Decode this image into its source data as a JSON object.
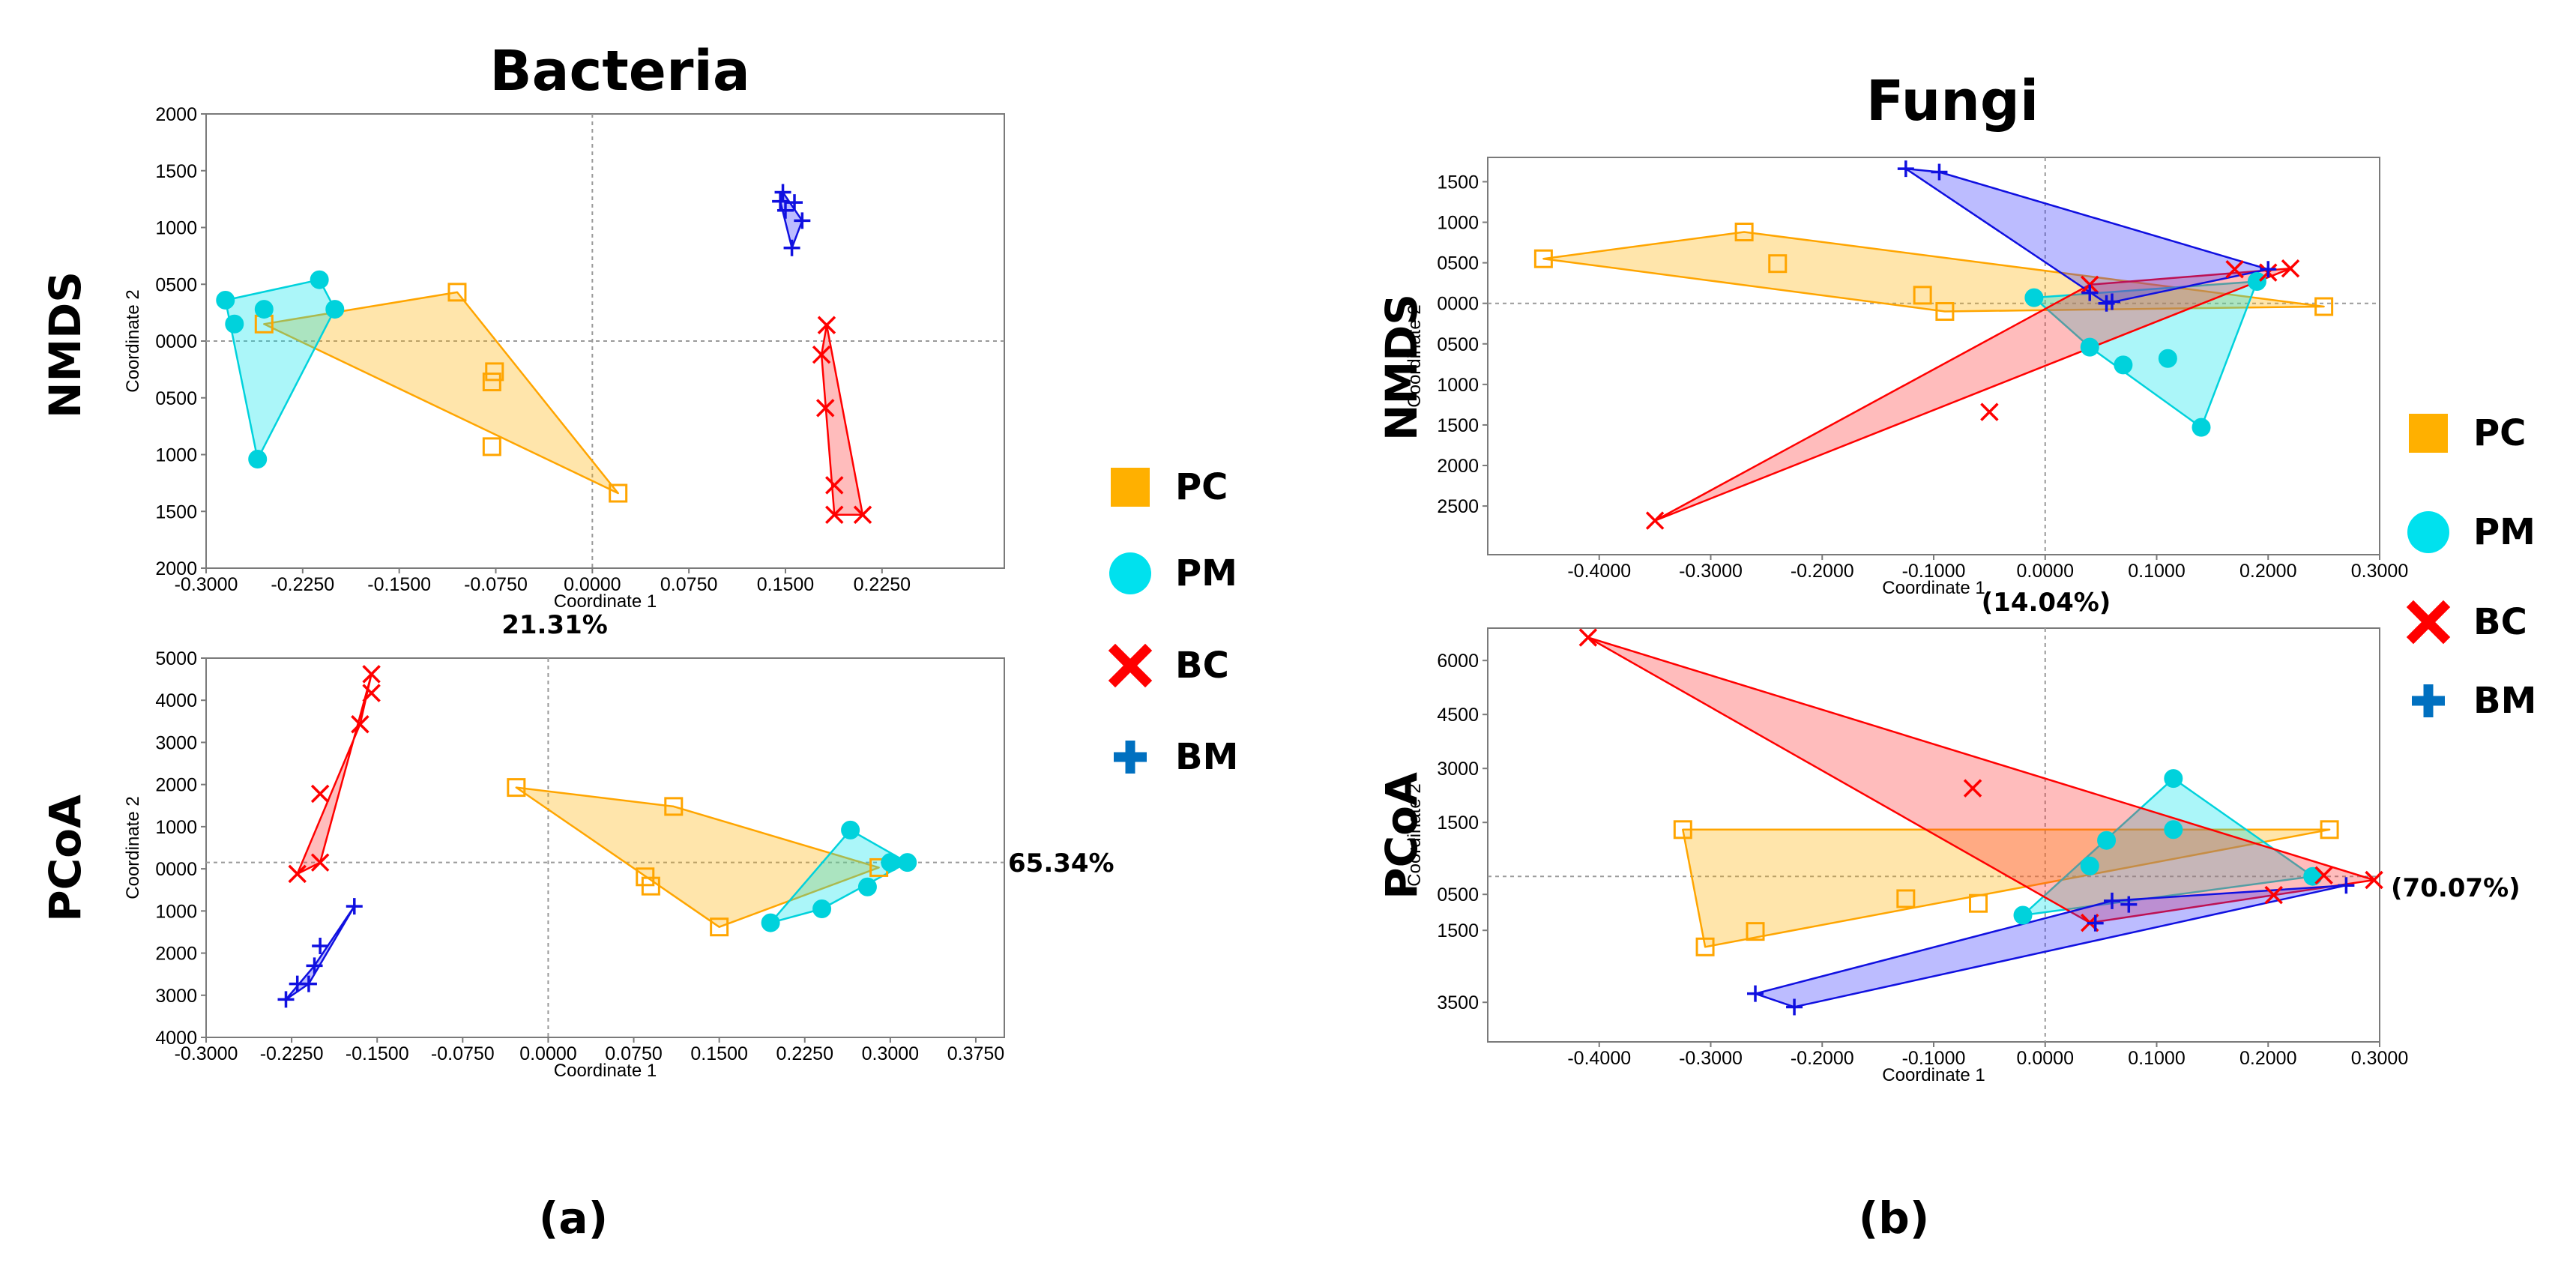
{
  "chart_data": [
    {
      "id": "bact_nmds",
      "type": "scatter",
      "section": "Bacteria",
      "method": "NMDS",
      "xlabel": "Coordinate 1",
      "ylabel": "Coordinate 2",
      "xlim": [
        -0.3,
        0.32
      ],
      "ylim": [
        -2000,
        2000
      ],
      "xticks": [
        -0.3,
        -0.225,
        -0.15,
        -0.075,
        0.0,
        0.075,
        0.15,
        0.225
      ],
      "xticklabels": [
        "-0.3000",
        "-0.2250",
        "-0.1500",
        "-0.0750",
        "0.0000",
        "0.0750",
        "0.1500",
        "0.2250"
      ],
      "yticks": [
        2000,
        1500,
        1000,
        500,
        0,
        -500,
        -1000,
        -1500,
        -2000
      ],
      "yticklabels": [
        "2000",
        "1500",
        "1000",
        "0500",
        "0000",
        "0500",
        "1000",
        "1500",
        "2000"
      ],
      "ref_x": 0.0,
      "ref_y": 0,
      "series": [
        {
          "name": "PC",
          "points": [
            [
              -0.105,
              430
            ],
            [
              -0.076,
              -270
            ],
            [
              -0.078,
              -360
            ],
            [
              -0.078,
              -930
            ],
            [
              -0.255,
              150
            ],
            [
              0.02,
              -1340
            ]
          ],
          "hull": [
            [
              -0.105,
              430
            ],
            [
              0.02,
              -1340
            ],
            [
              -0.255,
              150
            ]
          ]
        },
        {
          "name": "PM",
          "points": [
            [
              -0.285,
              360
            ],
            [
              -0.255,
              280
            ],
            [
              -0.278,
              150
            ],
            [
              -0.212,
              540
            ],
            [
              -0.2,
              280
            ],
            [
              -0.26,
              -1040
            ]
          ],
          "hull": [
            [
              -0.285,
              360
            ],
            [
              -0.212,
              540
            ],
            [
              -0.2,
              280
            ],
            [
              -0.26,
              -1040
            ]
          ]
        },
        {
          "name": "BC",
          "points": [
            [
              0.182,
              140
            ],
            [
              0.178,
              -120
            ],
            [
              0.181,
              -590
            ],
            [
              0.188,
              -1270
            ],
            [
              0.188,
              -1530
            ],
            [
              0.21,
              -1530
            ]
          ],
          "hull": [
            [
              0.182,
              140
            ],
            [
              0.21,
              -1530
            ],
            [
              0.188,
              -1530
            ],
            [
              0.178,
              -120
            ]
          ]
        },
        {
          "name": "BM",
          "points": [
            [
              0.148,
              1310
            ],
            [
              0.146,
              1230
            ],
            [
              0.157,
              1220
            ],
            [
              0.15,
              1150
            ],
            [
              0.163,
              1060
            ],
            [
              0.155,
              820
            ]
          ],
          "hull": [
            [
              0.148,
              1310
            ],
            [
              0.163,
              1060
            ],
            [
              0.155,
              820
            ],
            [
              0.146,
              1230
            ]
          ]
        }
      ]
    },
    {
      "id": "bact_pcoa",
      "type": "scatter",
      "section": "Bacteria",
      "method": "PCoA",
      "xlabel": "Coordinate 1",
      "ylabel": "Coordinate 2",
      "xlim": [
        -0.3,
        0.4
      ],
      "ylim": [
        -4000,
        5000
      ],
      "xticks": [
        -0.3,
        -0.225,
        -0.15,
        -0.075,
        0.0,
        0.075,
        0.15,
        0.225,
        0.3,
        0.375
      ],
      "xticklabels": [
        "-0.3000",
        "-0.2250",
        "-0.1500",
        "-0.0750",
        "0.0000",
        "0.0750",
        "0.1500",
        "0.2250",
        "0.3000",
        "0.3750"
      ],
      "yticks": [
        5000,
        4000,
        3000,
        2000,
        1000,
        0,
        -1000,
        -2000,
        -3000,
        -4000
      ],
      "yticklabels": [
        "5000",
        "4000",
        "3000",
        "2000",
        "1000",
        "0000",
        "1000",
        "2000",
        "3000",
        "4000"
      ],
      "ref_x": 0.0,
      "ref_y": 150,
      "series": [
        {
          "name": "PC",
          "points": [
            [
              -0.028,
              1930
            ],
            [
              0.11,
              1480
            ],
            [
              0.085,
              -190
            ],
            [
              0.09,
              -410
            ],
            [
              0.15,
              -1380
            ],
            [
              0.29,
              30
            ]
          ],
          "hull": [
            [
              -0.028,
              1930
            ],
            [
              0.11,
              1480
            ],
            [
              0.29,
              30
            ],
            [
              0.15,
              -1380
            ]
          ]
        },
        {
          "name": "PM",
          "points": [
            [
              0.265,
              920
            ],
            [
              0.3,
              150
            ],
            [
              0.315,
              150
            ],
            [
              0.28,
              -430
            ],
            [
              0.24,
              -950
            ],
            [
              0.195,
              -1280
            ]
          ],
          "hull": [
            [
              0.265,
              920
            ],
            [
              0.315,
              150
            ],
            [
              0.24,
              -950
            ],
            [
              0.195,
              -1280
            ]
          ]
        },
        {
          "name": "BC",
          "points": [
            [
              -0.155,
              4620
            ],
            [
              -0.155,
              4170
            ],
            [
              -0.165,
              3430
            ],
            [
              -0.2,
              1780
            ],
            [
              -0.2,
              150
            ],
            [
              -0.22,
              -120
            ]
          ],
          "hull": [
            [
              -0.155,
              4620
            ],
            [
              -0.2,
              150
            ],
            [
              -0.22,
              -120
            ],
            [
              -0.165,
              3430
            ]
          ]
        },
        {
          "name": "BM",
          "points": [
            [
              -0.17,
              -890
            ],
            [
              -0.2,
              -1830
            ],
            [
              -0.205,
              -2300
            ],
            [
              -0.21,
              -2730
            ],
            [
              -0.22,
              -2730
            ],
            [
              -0.23,
              -3100
            ]
          ],
          "hull": [
            [
              -0.17,
              -890
            ],
            [
              -0.205,
              -2300
            ],
            [
              -0.23,
              -3100
            ],
            [
              -0.21,
              -2730
            ]
          ]
        }
      ]
    },
    {
      "id": "fungi_nmds",
      "type": "scatter",
      "section": "Fungi",
      "method": "NMDS",
      "xlabel": "Coordinate 1",
      "ylabel": "Coordinate 2",
      "xlim": [
        -0.5,
        0.3
      ],
      "ylim": [
        -3100,
        1800
      ],
      "xticks": [
        -0.4,
        -0.3,
        -0.2,
        -0.1,
        0.0,
        0.1,
        0.2,
        0.3
      ],
      "xticklabels": [
        "-0.4000",
        "-0.3000",
        "-0.2000",
        "-0.1000",
        "0.0000",
        "0.1000",
        "0.2000",
        "0.3000"
      ],
      "yticks": [
        1500,
        1000,
        500,
        0,
        -500,
        -1000,
        -1500,
        -2000,
        -2500
      ],
      "yticklabels": [
        "1500",
        "1000",
        "0500",
        "0000",
        "0500",
        "1000",
        "1500",
        "2000",
        "2500"
      ],
      "ref_x": 0.0,
      "ref_y": 0,
      "series": [
        {
          "name": "PC",
          "points": [
            [
              -0.45,
              550
            ],
            [
              -0.27,
              880
            ],
            [
              -0.24,
              490
            ],
            [
              -0.11,
              100
            ],
            [
              -0.09,
              -100
            ],
            [
              0.25,
              -40
            ]
          ],
          "hull": [
            [
              -0.45,
              550
            ],
            [
              -0.27,
              880
            ],
            [
              0.25,
              -40
            ],
            [
              -0.09,
              -100
            ]
          ]
        },
        {
          "name": "PM",
          "points": [
            [
              -0.01,
              70
            ],
            [
              0.04,
              -540
            ],
            [
              0.07,
              -760
            ],
            [
              0.11,
              -680
            ],
            [
              0.14,
              -1530
            ],
            [
              0.19,
              270
            ]
          ],
          "hull": [
            [
              -0.01,
              70
            ],
            [
              0.19,
              270
            ],
            [
              0.14,
              -1530
            ],
            [
              0.04,
              -540
            ]
          ]
        },
        {
          "name": "BC",
          "points": [
            [
              -0.35,
              -2680
            ],
            [
              -0.05,
              -1340
            ],
            [
              0.04,
              230
            ],
            [
              0.17,
              420
            ],
            [
              0.22,
              430
            ],
            [
              0.2,
              380
            ]
          ],
          "hull": [
            [
              -0.35,
              -2680
            ],
            [
              0.04,
              230
            ],
            [
              0.22,
              430
            ]
          ]
        },
        {
          "name": "BM",
          "points": [
            [
              -0.125,
              1660
            ],
            [
              -0.095,
              1620
            ],
            [
              0.04,
              130
            ],
            [
              0.055,
              0
            ],
            [
              0.06,
              20
            ],
            [
              0.2,
              420
            ]
          ],
          "hull": [
            [
              -0.125,
              1660
            ],
            [
              -0.095,
              1620
            ],
            [
              0.2,
              420
            ],
            [
              0.055,
              0
            ]
          ]
        }
      ]
    },
    {
      "id": "fungi_pcoa",
      "type": "scatter",
      "section": "Fungi",
      "method": "PCoA",
      "xlabel": "Coordinate 1",
      "ylabel": "Coordinate 2",
      "xlim": [
        -0.5,
        0.3
      ],
      "ylim": [
        -4600,
        6900
      ],
      "xticks": [
        -0.4,
        -0.3,
        -0.2,
        -0.1,
        0.0,
        0.1,
        0.2,
        0.3
      ],
      "xticklabels": [
        "-0.4000",
        "-0.3000",
        "-0.2000",
        "-0.1000",
        "0.0000",
        "0.1000",
        "0.2000",
        "0.3000"
      ],
      "yticks": [
        6000,
        4500,
        3000,
        1500,
        -500,
        -1500,
        -3500
      ],
      "yticklabels": [
        "6000",
        "4500",
        "3000",
        "1500",
        "0500",
        "1500",
        "3500"
      ],
      "ref_x": 0.0,
      "ref_y": 0,
      "series": [
        {
          "name": "PC",
          "points": [
            [
              -0.325,
              1300
            ],
            [
              -0.26,
              -1530
            ],
            [
              -0.305,
              -1960
            ],
            [
              -0.125,
              -620
            ],
            [
              -0.06,
              -750
            ],
            [
              0.255,
              1300
            ]
          ],
          "hull": [
            [
              -0.325,
              1300
            ],
            [
              0.255,
              1300
            ],
            [
              -0.305,
              -1960
            ]
          ]
        },
        {
          "name": "PM",
          "points": [
            [
              0.115,
              2720
            ],
            [
              0.115,
              1300
            ],
            [
              0.055,
              1000
            ],
            [
              0.04,
              290
            ],
            [
              -0.02,
              -1080
            ],
            [
              0.24,
              0
            ]
          ],
          "hull": [
            [
              0.115,
              2720
            ],
            [
              0.24,
              0
            ],
            [
              -0.02,
              -1080
            ]
          ]
        },
        {
          "name": "BC",
          "points": [
            [
              -0.41,
              6640
            ],
            [
              -0.065,
              2450
            ],
            [
              0.04,
              -1290
            ],
            [
              0.205,
              -520
            ],
            [
              0.25,
              30
            ],
            [
              0.295,
              -100
            ]
          ],
          "hull": [
            [
              -0.41,
              6640
            ],
            [
              0.295,
              -100
            ],
            [
              0.04,
              -1290
            ]
          ]
        },
        {
          "name": "BM",
          "points": [
            [
              -0.26,
              -3260
            ],
            [
              -0.225,
              -3630
            ],
            [
              0.045,
              -1300
            ],
            [
              0.06,
              -680
            ],
            [
              0.075,
              -780
            ],
            [
              0.27,
              -250
            ]
          ],
          "hull": [
            [
              -0.26,
              -3260
            ],
            [
              0.06,
              -680
            ],
            [
              0.27,
              -250
            ],
            [
              -0.225,
              -3630
            ]
          ]
        }
      ]
    }
  ],
  "titles": {
    "bacteria": "Bacteria",
    "fungi": "Fungi"
  },
  "row_labels": {
    "nmds_a": "NMDS",
    "pcoa_a": "PCoA",
    "nmds_b": "NMDS",
    "pcoa_b": "PCoA"
  },
  "annotations": {
    "bact_x_var": "21.31%",
    "bact_y_var": "65.34%",
    "fungi_x_var": "(14.04%)",
    "fungi_y_var": "(70.07%)"
  },
  "subfigure_labels": {
    "a": "(a)",
    "b": "(b)"
  },
  "legend": [
    {
      "name": "PC",
      "color": "#FFB000",
      "symbol": "square"
    },
    {
      "name": "PM",
      "color": "#00E1EE",
      "symbol": "circle"
    },
    {
      "name": "BC",
      "color": "#FF0000",
      "symbol": "x"
    },
    {
      "name": "BM",
      "color": "#0070C0",
      "symbol": "plus"
    }
  ],
  "series_styles": {
    "PC": {
      "fill": "#FFB000",
      "stroke": "#FFA500",
      "marker": "square"
    },
    "PM": {
      "fill": "#00E5EE",
      "stroke": "#00D2DC",
      "marker": "circle"
    },
    "BC": {
      "fill": "#FF3333",
      "stroke": "#FF0000",
      "marker": "x"
    },
    "BM": {
      "fill": "#3333FF",
      "stroke": "#1010E0",
      "marker": "plus"
    }
  },
  "legend_label_colors": {
    "PC": "#FFB000",
    "PM": "#00E1EE",
    "BC": "#FF0000",
    "BM": "#002A70"
  }
}
